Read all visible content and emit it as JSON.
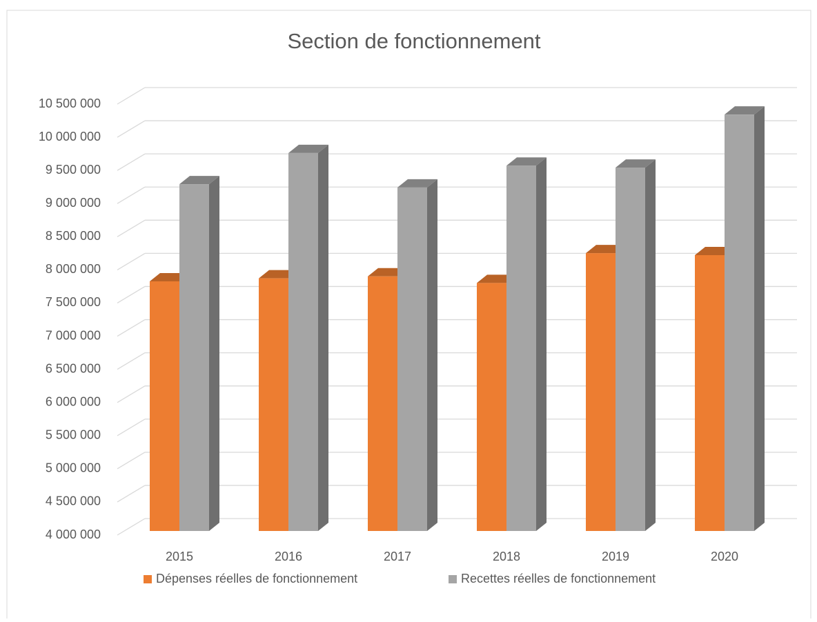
{
  "chart_data": {
    "type": "bar3d",
    "title": "Section de fonctionnement",
    "categories": [
      "2015",
      "2016",
      "2017",
      "2018",
      "2019",
      "2020"
    ],
    "series": [
      {
        "name": "Dépenses réelles de fonctionnement",
        "color": "#ed7d31",
        "values": [
          7765000,
          7810000,
          7840000,
          7740000,
          8190000,
          8160000
        ]
      },
      {
        "name": "Recettes réelles de fonctionnement",
        "color": "#a5a5a5",
        "values": [
          9230000,
          9700000,
          9180000,
          9510000,
          9480000,
          10280000
        ]
      }
    ],
    "ylim": [
      4000000,
      10500000
    ],
    "yticks": [
      {
        "value": 4000000,
        "label": "4 000 000"
      },
      {
        "value": 4500000,
        "label": "4 500 000"
      },
      {
        "value": 5000000,
        "label": "5 000 000"
      },
      {
        "value": 5500000,
        "label": "5 500 000"
      },
      {
        "value": 6000000,
        "label": "6 000 000"
      },
      {
        "value": 6500000,
        "label": "6 500 000"
      },
      {
        "value": 7000000,
        "label": "7 000 000"
      },
      {
        "value": 7500000,
        "label": "7 500 000"
      },
      {
        "value": 8000000,
        "label": "8 000 000"
      },
      {
        "value": 8500000,
        "label": "8 500 000"
      },
      {
        "value": 9000000,
        "label": "9 000 000"
      },
      {
        "value": 9500000,
        "label": "9 500 000"
      },
      {
        "value": 10000000,
        "label": "10 000 000"
      },
      {
        "value": 10500000,
        "label": "10 500 000"
      }
    ],
    "grid": true,
    "legend": "bottom"
  }
}
